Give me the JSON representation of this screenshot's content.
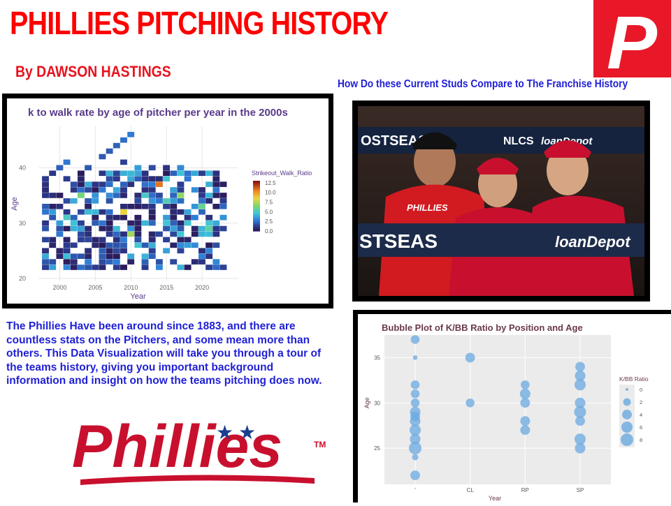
{
  "header": {
    "title": "PHILLIES PITCHING HISTORY",
    "byline": "By DAWSON HASTINGS",
    "subtitle": "How Do these Current Studs Compare to The Franchise History"
  },
  "colors": {
    "brand_red": "#e81828",
    "title_red": "#ff0000",
    "byline_red": "#e8121d",
    "accent_blue": "#1f1fd6",
    "wordmark_red": "#c8102e",
    "wordmark_blue": "#1b3f8f",
    "bubble_blue": "#6aa9e0",
    "heatmap_title": "#5a3a8a"
  },
  "logo": {
    "letter": "P"
  },
  "description": "The Phillies Have been around since 1883, and there are countless stats on the Pitchers, and some mean more than others. This Data Visualization will take you through a tour of the teams history, giving you important background information and insight on how the teams pitching does now.",
  "wordmark": {
    "text": "Phillies",
    "tm": "TM"
  },
  "photo": {
    "icon": "photo-icon",
    "banner_left": "OSTSEASO",
    "banner_nlcs": "NLCS",
    "banner_sponsor": "loanDepot",
    "rail_left": "STSEAS",
    "rail_right": "loanDepot",
    "shirt_text": "PHILLIES"
  },
  "chart_data": [
    {
      "type": "heatmap",
      "title": "k to walk rate by age of pitcher per year in the 2000s",
      "xlabel": "Year",
      "ylabel": "Age",
      "xlim": [
        1997,
        2025
      ],
      "ylim": [
        19.5,
        47.5
      ],
      "xticks": [
        2000,
        2005,
        2010,
        2015,
        2020
      ],
      "yticks": [
        20,
        30,
        40
      ],
      "grid": true,
      "legend_title": "Strikeout_Walk_Ratio",
      "legend_ticks": [
        "12.5",
        "10.0",
        "7.5",
        "5.0",
        "2.5",
        "0.0"
      ],
      "legend_placement": "right",
      "value_range": [
        0,
        13
      ],
      "age_range": [
        22,
        39
      ],
      "year_range": [
        1998,
        2023
      ],
      "extra_cells": [
        {
          "year": 2010,
          "age": 46,
          "value": 2.6
        },
        {
          "year": 2009,
          "age": 45,
          "value": 2.3
        },
        {
          "year": 2008,
          "age": 44,
          "value": 2.0
        },
        {
          "year": 2007,
          "age": 43,
          "value": 1.9
        },
        {
          "year": 2006,
          "age": 42,
          "value": 1.8
        },
        {
          "year": 2009,
          "age": 41,
          "value": 1.2
        },
        {
          "year": 2001,
          "age": 41,
          "value": 2.5
        },
        {
          "year": 2000,
          "age": 40,
          "value": 2.0
        },
        {
          "year": 2011,
          "age": 40,
          "value": 3.5
        },
        {
          "year": 2004,
          "age": 40,
          "value": 1.8
        },
        {
          "year": 2015,
          "age": 40,
          "value": 0.8
        },
        {
          "year": 2017,
          "age": 40,
          "value": 3.0
        },
        {
          "year": 2013,
          "age": 40,
          "value": 1.5
        },
        {
          "year": 1999,
          "age": 39,
          "value": 0.9
        },
        {
          "year": 2020,
          "age": 39,
          "value": 1.1
        },
        {
          "year": 2008,
          "age": 39,
          "value": 1.3
        }
      ],
      "bright_cells": [
        {
          "year": 2014,
          "age": 37,
          "value": 10.8
        },
        {
          "year": 2009,
          "age": 32,
          "value": 8.5
        },
        {
          "year": 2003,
          "age": 35,
          "value": 6.2
        },
        {
          "year": 2017,
          "age": 35,
          "value": 6.8
        },
        {
          "year": 2010,
          "age": 28,
          "value": 7.2
        },
        {
          "year": 2020,
          "age": 33,
          "value": 5.8
        },
        {
          "year": 2015,
          "age": 34,
          "value": 5.2
        },
        {
          "year": 2001,
          "age": 31,
          "value": 5.0
        },
        {
          "year": 2021,
          "age": 29,
          "value": 5.5
        },
        {
          "year": 2012,
          "age": 35,
          "value": 4.9
        },
        {
          "year": 2018,
          "age": 30,
          "value": 4.6
        }
      ]
    },
    {
      "type": "scatter",
      "title": "Bubble Plot of K/BB Ratio by Position and Age",
      "xlabel": "Year",
      "ylabel": "Age",
      "categories": [
        "",
        "CL",
        "RP",
        "SP"
      ],
      "category_labels": [
        "'",
        "CL",
        "RP",
        "SP"
      ],
      "ylim": [
        21,
        37.5
      ],
      "yticks": [
        25,
        30,
        35
      ],
      "grid": true,
      "legend_title": "K/BB Ratio",
      "legend_values": [
        0,
        2,
        4,
        6,
        8
      ],
      "legend_placement": "right",
      "points": [
        {
          "x": "",
          "y": 37,
          "kbb": 3
        },
        {
          "x": "",
          "y": 35,
          "kbb": 0.3
        },
        {
          "x": "",
          "y": 32,
          "kbb": 3
        },
        {
          "x": "",
          "y": 31,
          "kbb": 3
        },
        {
          "x": "",
          "y": 30,
          "kbb": 3
        },
        {
          "x": "",
          "y": 29,
          "kbb": 5
        },
        {
          "x": "",
          "y": 28.5,
          "kbb": 4
        },
        {
          "x": "",
          "y": 28,
          "kbb": 5
        },
        {
          "x": "",
          "y": 27,
          "kbb": 6
        },
        {
          "x": "",
          "y": 26,
          "kbb": 5
        },
        {
          "x": "",
          "y": 25,
          "kbb": 8
        },
        {
          "x": "",
          "y": 24,
          "kbb": 1
        },
        {
          "x": "",
          "y": 22,
          "kbb": 4
        },
        {
          "x": "CL",
          "y": 35,
          "kbb": 4
        },
        {
          "x": "CL",
          "y": 30,
          "kbb": 3
        },
        {
          "x": "RP",
          "y": 32,
          "kbb": 3
        },
        {
          "x": "RP",
          "y": 31,
          "kbb": 5
        },
        {
          "x": "RP",
          "y": 30,
          "kbb": 4
        },
        {
          "x": "RP",
          "y": 28,
          "kbb": 4
        },
        {
          "x": "RP",
          "y": 27,
          "kbb": 4
        },
        {
          "x": "SP",
          "y": 34,
          "kbb": 4
        },
        {
          "x": "SP",
          "y": 33,
          "kbb": 5
        },
        {
          "x": "SP",
          "y": 32,
          "kbb": 6
        },
        {
          "x": "SP",
          "y": 30,
          "kbb": 5
        },
        {
          "x": "SP",
          "y": 29,
          "kbb": 7
        },
        {
          "x": "SP",
          "y": 28,
          "kbb": 4
        },
        {
          "x": "SP",
          "y": 26,
          "kbb": 6
        },
        {
          "x": "SP",
          "y": 25,
          "kbb": 5
        }
      ]
    }
  ]
}
